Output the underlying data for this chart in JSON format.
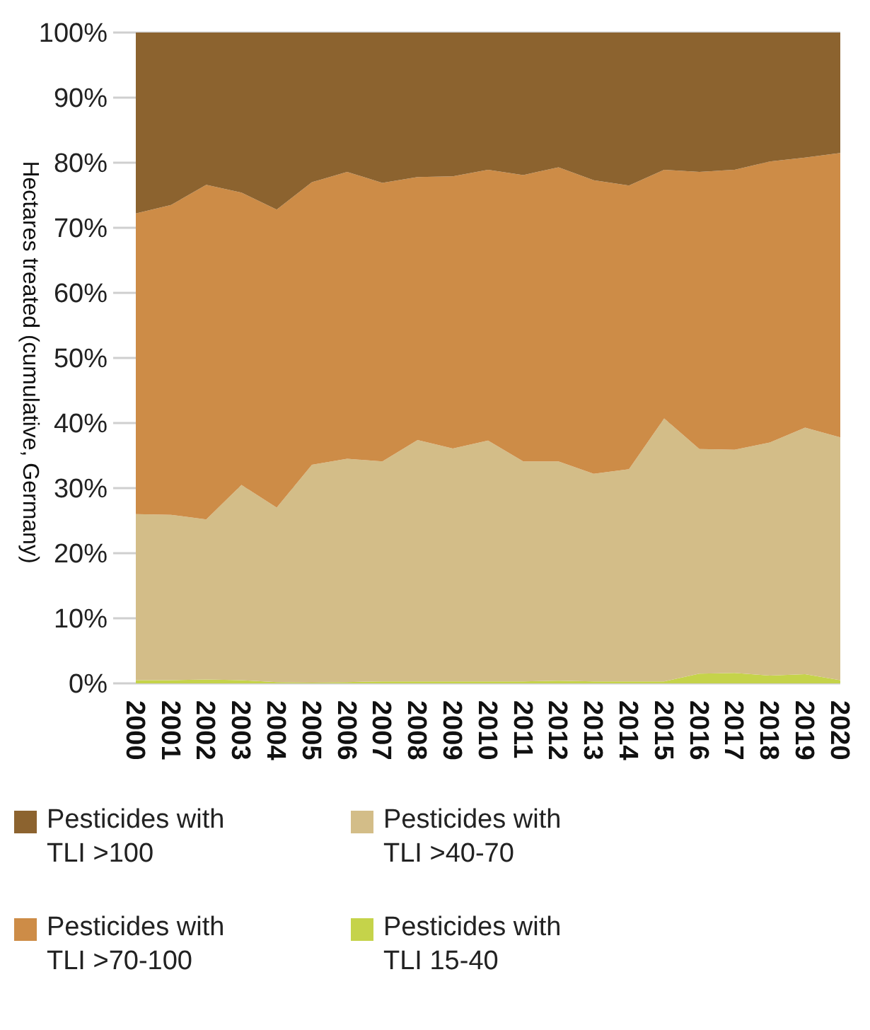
{
  "chart_data": {
    "type": "area",
    "stacked": true,
    "ylabel": "Hectares treated (cumulative, Germany)",
    "categories": [
      "2000",
      "2001",
      "2002",
      "2003",
      "2004",
      "2005",
      "2006",
      "2007",
      "2008",
      "2009",
      "2010",
      "2011",
      "2012",
      "2013",
      "2014",
      "2015",
      "2016",
      "2017",
      "2018",
      "2019",
      "2020"
    ],
    "series": [
      {
        "name": "Pesticides with TLI 15-40",
        "color": "#c5d34a",
        "values": [
          0.5,
          0.5,
          0.6,
          0.5,
          0.2,
          0.1,
          0.2,
          0.3,
          0.3,
          0.3,
          0.3,
          0.3,
          0.4,
          0.3,
          0.3,
          0.3,
          1.5,
          1.6,
          1.2,
          1.4,
          0.5
        ]
      },
      {
        "name": "Pesticides with TLI >40-70",
        "color": "#d3bd88",
        "values": [
          25.5,
          25.4,
          24.6,
          30,
          26.8,
          33.5,
          34.3,
          33.8,
          37.1,
          35.8,
          37,
          33.8,
          33.7,
          31.9,
          32.6,
          40.4,
          34.5,
          34.3,
          35.8,
          37.9,
          37.3
        ]
      },
      {
        "name": "Pesticides with TLI >70-100",
        "color": "#cd8c47",
        "values": [
          46.2,
          47.6,
          51.4,
          44.9,
          45.8,
          43.4,
          44.1,
          42.8,
          40.4,
          41.8,
          41.6,
          44,
          45.2,
          45.1,
          43.6,
          38.2,
          42.6,
          43,
          43.2,
          41.5,
          43.7
        ]
      },
      {
        "name": "Pesticides with TLI >100",
        "color": "#8c632f",
        "values": [
          27.8,
          26.5,
          23.4,
          24.6,
          27.2,
          23,
          21.4,
          23.1,
          22.2,
          22.1,
          21.1,
          21.9,
          20.7,
          22.7,
          23.5,
          21.1,
          21.4,
          21.1,
          19.8,
          19.2,
          18.5
        ]
      }
    ],
    "ylim": [
      0,
      100
    ],
    "yticks": [
      {
        "value": 0,
        "label": "0%"
      },
      {
        "value": 10,
        "label": "10%"
      },
      {
        "value": 20,
        "label": "20%"
      },
      {
        "value": 30,
        "label": "30%"
      },
      {
        "value": 40,
        "label": "40%"
      },
      {
        "value": 50,
        "label": "50%"
      },
      {
        "value": 60,
        "label": "60%"
      },
      {
        "value": 70,
        "label": "70%"
      },
      {
        "value": 80,
        "label": "80%"
      },
      {
        "value": 90,
        "label": "90%"
      },
      {
        "value": 100,
        "label": "100%"
      }
    ],
    "grid": "y",
    "legend": "bottom"
  }
}
